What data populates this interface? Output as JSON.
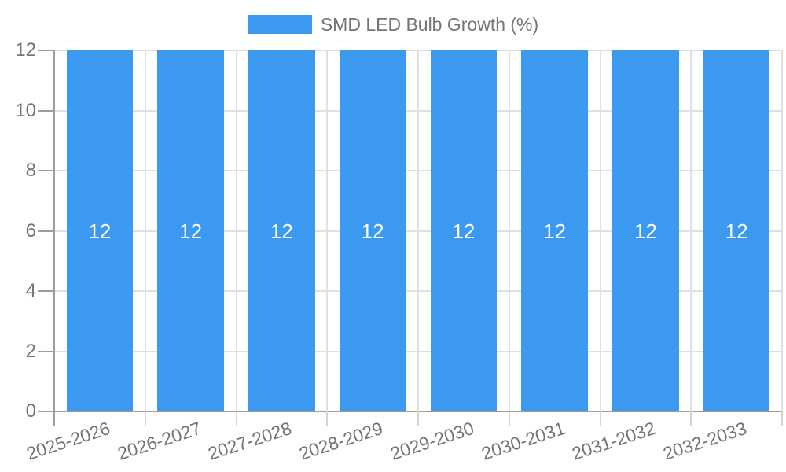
{
  "legend": {
    "label": "SMD LED Bulb Growth (%)"
  },
  "chart_data": {
    "type": "bar",
    "title": "",
    "categories": [
      "2025-2026",
      "2026-2027",
      "2027-2028",
      "2028-2029",
      "2029-2030",
      "2030-2031",
      "2031-2032",
      "2032-2033"
    ],
    "series": [
      {
        "name": "SMD LED Bulb Growth (%)",
        "values": [
          12,
          12,
          12,
          12,
          12,
          12,
          12,
          12
        ]
      }
    ],
    "bar_labels": [
      "12",
      "12",
      "12",
      "12",
      "12",
      "12",
      "12",
      "12"
    ],
    "xlabel": "",
    "ylabel": "",
    "ylim": [
      0,
      12
    ],
    "yticks": [
      0,
      2,
      4,
      6,
      8,
      10,
      12
    ],
    "grid": true,
    "legend_position": "top-center",
    "x_label_rotation_deg": -18
  },
  "style": {
    "bar_color": "#3b99f0",
    "bar_label_color": "#ffffff",
    "axis_text_color": "#757575",
    "gridline_color": "#e0e0e0",
    "axis_line_color": "#9e9e9e",
    "minor_tick_color": "#d4d4d4",
    "background_color": "#ffffff"
  }
}
